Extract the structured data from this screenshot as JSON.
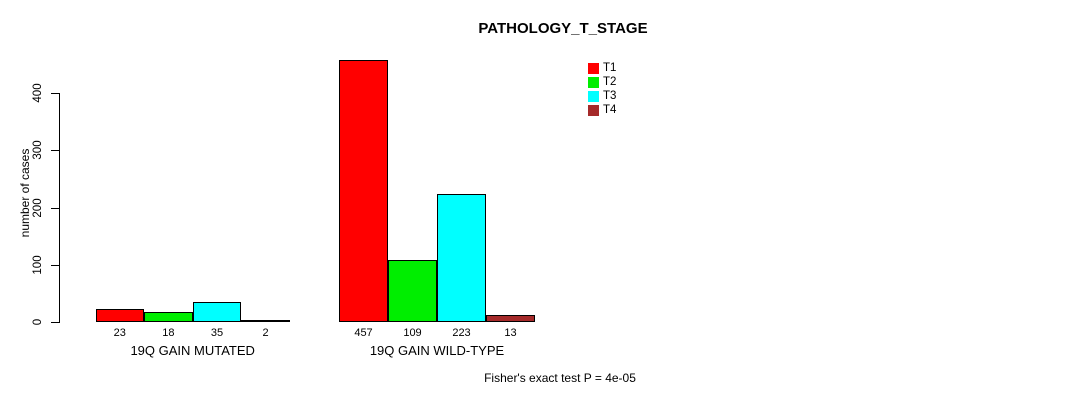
{
  "chart_data": {
    "type": "bar",
    "title": "PATHOLOGY_T_STAGE",
    "ylabel": "number of cases",
    "xlabel": "",
    "categories": [
      "19Q GAIN MUTATED",
      "19Q GAIN WILD-TYPE"
    ],
    "series": [
      {
        "name": "T1",
        "color": "#ff0000",
        "values": [
          23,
          457
        ]
      },
      {
        "name": "T2",
        "color": "#00ee00",
        "values": [
          18,
          109
        ]
      },
      {
        "name": "T3",
        "color": "#00ffff",
        "values": [
          35,
          223
        ]
      },
      {
        "name": "T4",
        "color": "#a52a2a",
        "values": [
          2,
          13
        ]
      }
    ],
    "bar_value_labels": [
      [
        "23",
        "18",
        "35",
        "2"
      ],
      [
        "457",
        "109",
        "223",
        "13"
      ]
    ],
    "yticks": [
      "0",
      "100",
      "200",
      "300",
      "400"
    ],
    "ylim": [
      0,
      400
    ],
    "grid": false,
    "legend_position": "upper-right-inside",
    "legend_entries": [
      "T1",
      "T2",
      "T3",
      "T4"
    ],
    "annotation": "Fisher's exact test P = 4e-05"
  }
}
